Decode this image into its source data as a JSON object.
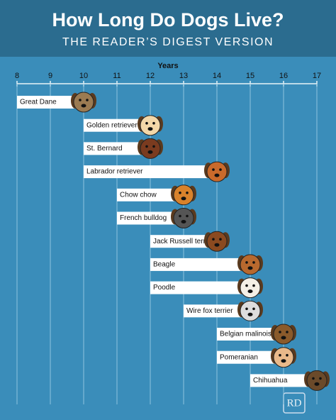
{
  "chart_data": {
    "type": "range-bar",
    "title": "How Long Do Dogs Live?",
    "subtitle": "THE READER’S DIGEST VERSION",
    "x_label": "Years",
    "logo": "RD",
    "categories": [
      "Great Dane",
      "Golden retriever",
      "St. Bernard",
      "Labrador retriever",
      "Chow chow",
      "French bulldog",
      "Jack Russell terrier",
      "Beagle",
      "Poodle",
      "Wire fox terrier",
      "Belgian malinois",
      "Pomeranian",
      "Chihuahua"
    ],
    "start": [
      8,
      10,
      10,
      10,
      11,
      11,
      12,
      12,
      12,
      13,
      14,
      14,
      15
    ],
    "end": [
      10,
      12,
      12,
      14,
      13,
      13,
      14,
      15,
      15,
      15,
      16,
      16,
      17
    ],
    "color": "#ffffff",
    "xlim": [
      8,
      17
    ],
    "xticks": [
      8,
      9,
      10,
      11,
      12,
      13,
      14,
      15,
      16,
      17
    ],
    "grid": true
  }
}
